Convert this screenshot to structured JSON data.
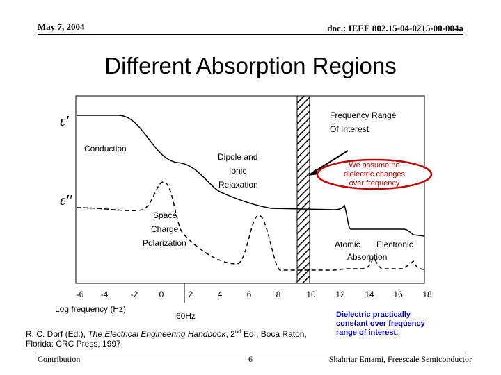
{
  "header": {
    "date": "May 7, 2004",
    "doc": "doc.: IEEE 802.15-04-0215-00-004a"
  },
  "title": "Different Absorption Regions",
  "chart": {
    "y_symbols": {
      "real": "ε′",
      "imag": "ε′′"
    },
    "labels": {
      "freq_range_1": "Frequency Range",
      "freq_range_2": "Of Interest",
      "conduction": "Conduction",
      "dipole_1": "Dipole and",
      "dipole_2": "Ionic",
      "dipole_3": "Relaxation",
      "space_1": "Space",
      "space_2": "Charge",
      "space_3": "Polarization",
      "atomic": "Atomic",
      "electronic": "Electronic",
      "absorption": "Absorption"
    },
    "assumption": [
      "We assume no",
      "dielectric changes",
      "over frequency"
    ],
    "x_ticks": [
      "-6",
      "-4",
      "-2",
      "0",
      "2",
      "4",
      "6",
      "8",
      "10",
      "12",
      "14",
      "16",
      "18"
    ],
    "x_axis_label": "Log frequency (Hz)",
    "marker_label": "60Hz",
    "note": [
      "Dielectric practically",
      "constant over frequency",
      "range of interest."
    ],
    "colors": {
      "assumption_border": "#c00000"
    }
  },
  "citation": {
    "line1_pre": "R. C. Dorf (Ed.), ",
    "line1_italic": "The Electrical Engineering Handbook",
    "line1_sep": ", 2",
    "line1_sup": "nd",
    "line1_post": " Ed., Boca Raton,",
    "line2": "Florida: CRC Press, 1997."
  },
  "footer": {
    "left": "Contribution",
    "page": "6",
    "right": "Shahriar Emami, Freescale Semiconductor"
  }
}
